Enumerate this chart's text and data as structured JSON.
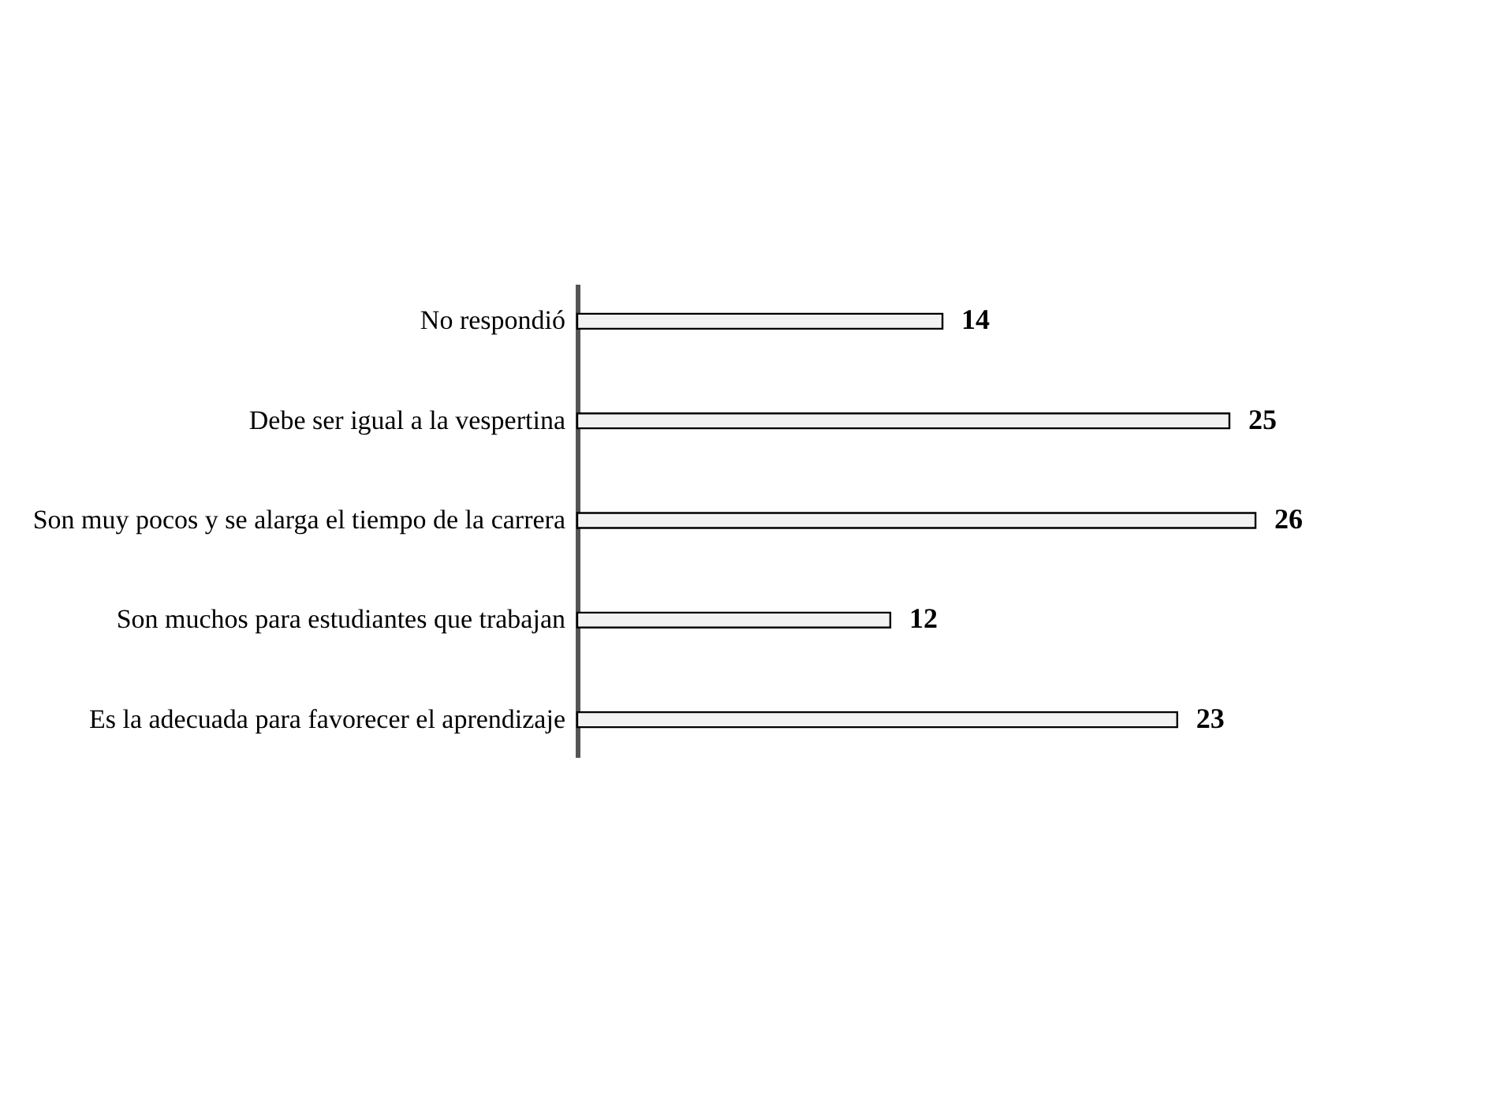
{
  "chart_data": {
    "type": "bar",
    "orientation": "horizontal",
    "categories": [
      "No respondió",
      "Debe ser igual a la vespertina",
      "Son muy pocos y se alarga el tiempo de la carrera",
      "Son muchos para estudiantes que trabajan",
      "Es la adecuada para favorecer el aprendizaje"
    ],
    "values": [
      14,
      25,
      26,
      12,
      23
    ],
    "color": "#f2f2f2",
    "data_labels": true
  }
}
